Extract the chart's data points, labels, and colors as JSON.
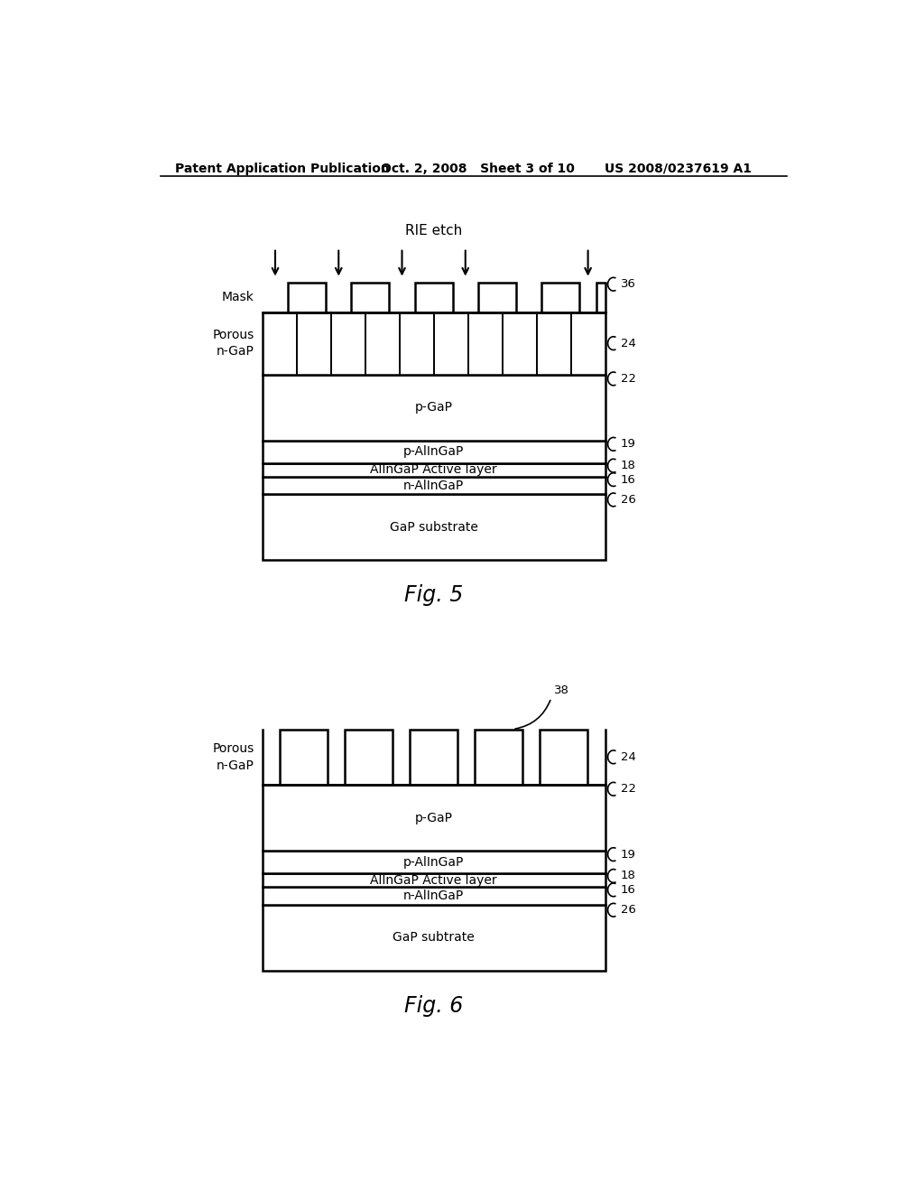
{
  "header_left": "Patent Application Publication",
  "header_center": "Oct. 2, 2008   Sheet 3 of 10",
  "header_right": "US 2008/0237619 A1",
  "fig5_caption": "Fig. 5",
  "fig6_caption": "Fig. 6",
  "rie_label": "RIE etch",
  "mask_label": "Mask",
  "porous_ngap_label": "Porous\nn-GaP",
  "layer_labels": [
    "p-GaP",
    "p-AlInGaP",
    "AlInGaP Active layer",
    "n-AlInGaP",
    "GaP substrate"
  ],
  "layer_labels_fig6": [
    "p-GaP",
    "p-AlInGaP",
    "AlInGaP Active layer",
    "n-AlInGaP",
    "GaP subtrate"
  ],
  "bg_color": "#ffffff",
  "line_color": "#000000",
  "text_color": "#000000"
}
